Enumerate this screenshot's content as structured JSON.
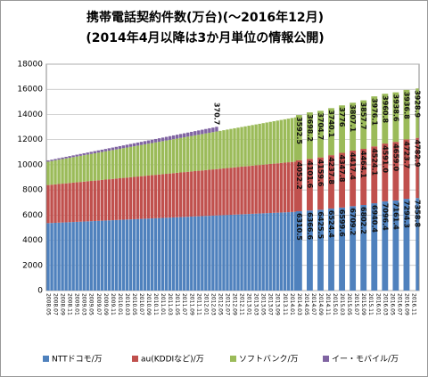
{
  "chart_data": {
    "type": "stacked_bar",
    "title": "携帯電話契約件数(万台)(～2016年12月)",
    "subtitle": "(2014年4月以降は3か月単位の情報公開)",
    "categories": [
      "2008.05",
      null,
      "2008.07",
      null,
      "2008.09",
      null,
      "2008.11",
      null,
      "2009.01",
      null,
      "2009.03",
      null,
      "2009.05",
      null,
      "2009.07",
      null,
      "2009.09",
      null,
      "2009.11",
      null,
      "2010.01",
      null,
      "2010.03",
      null,
      "2010.05",
      null,
      "2010.07",
      null,
      "2010.09",
      null,
      "2010.11",
      null,
      "2011.01",
      null,
      "2011.03",
      null,
      "2011.05",
      null,
      "2011.07",
      null,
      "2011.09",
      null,
      "2011.11",
      null,
      "2012.01",
      null,
      "2012.03",
      null,
      "2012.05",
      null,
      "2012.07",
      null,
      "2012.09",
      null,
      "2012.11",
      null,
      "2013.01",
      null,
      "2013.03",
      null,
      "2013.05",
      null,
      "2013.07",
      null,
      "2013.09",
      null,
      "2013.11",
      null,
      "2014.01",
      null,
      "2014.03",
      null,
      "2014.05",
      null,
      "2014.07",
      null,
      "2014.09",
      null,
      "2014.11",
      null,
      "2015.01",
      null,
      "2015.03",
      null,
      "2015.05",
      null,
      "2015.07",
      null,
      "2015.09",
      null,
      "2015.11",
      null,
      "2016.01",
      null,
      "2016.03",
      null,
      "2016.05",
      null,
      "2016.07",
      null,
      "2016.09",
      null,
      "2016.11",
      null
    ],
    "series": [
      {
        "name": "NTTドコモ/万",
        "color": "#4f81bd",
        "values": [
          5360,
          5373,
          5386,
          5399,
          5412,
          5425,
          5438,
          5451,
          5464,
          5477,
          5490,
          5503,
          5516,
          5529,
          5542,
          5555,
          5568,
          5581,
          5594,
          5607,
          5620,
          5633,
          5646,
          5659,
          5672,
          5685,
          5698,
          5711,
          5724,
          5737,
          5750,
          5763,
          5776,
          5789,
          5802,
          5815,
          5828,
          5841,
          5854,
          5867,
          5880,
          5893,
          5906,
          5919,
          5932,
          5945,
          5958,
          5971,
          5984,
          5997,
          6010,
          6023,
          6036,
          6049,
          6062,
          6075,
          6088,
          6101,
          6114,
          6127,
          6140,
          6153,
          6166,
          6179,
          6192,
          6205,
          6218,
          6231,
          6244,
          6257,
          6310.5,
          null,
          null,
          6366.6,
          null,
          null,
          6425.5,
          null,
          null,
          6524.4,
          null,
          null,
          6599.6,
          null,
          null,
          6709.2,
          null,
          null,
          6802.2,
          null,
          null,
          6940.4,
          null,
          null,
          7096.4,
          null,
          null,
          7161.4,
          null,
          null,
          7294.3,
          null,
          null,
          7358.8
        ],
        "value_labels": [
          null,
          null,
          null,
          null,
          null,
          null,
          null,
          null,
          null,
          null,
          null,
          null,
          null,
          null,
          null,
          null,
          null,
          null,
          null,
          null,
          null,
          null,
          null,
          null,
          null,
          null,
          null,
          null,
          null,
          null,
          null,
          null,
          null,
          null,
          null,
          null,
          null,
          null,
          null,
          null,
          null,
          null,
          null,
          null,
          null,
          null,
          null,
          null,
          null,
          null,
          null,
          null,
          null,
          null,
          null,
          null,
          null,
          null,
          null,
          null,
          null,
          null,
          null,
          null,
          null,
          null,
          null,
          null,
          null,
          null,
          "6310.5",
          null,
          null,
          "6366.6",
          null,
          null,
          "6425.5",
          null,
          null,
          "6524.4",
          null,
          null,
          "6599.6",
          null,
          null,
          "6709.2",
          null,
          null,
          "6802.2",
          null,
          null,
          "6940.4",
          null,
          null,
          "7096.4",
          null,
          null,
          "7161.4",
          null,
          null,
          "7294.3",
          null,
          null,
          "7358.8"
        ]
      },
      {
        "name": "au(KDDIなど)/万",
        "color": "#c0504d",
        "values": [
          3030,
          3044,
          3058,
          3072,
          3086,
          3100,
          3114,
          3128,
          3142,
          3156,
          3170,
          3184,
          3198,
          3212,
          3226,
          3240,
          3254,
          3268,
          3282,
          3296,
          3310,
          3324,
          3338,
          3352,
          3366,
          3380,
          3394,
          3408,
          3422,
          3436,
          3450,
          3464,
          3478,
          3492,
          3506,
          3520,
          3534,
          3548,
          3562,
          3576,
          3590,
          3604,
          3618,
          3632,
          3646,
          3660,
          3674,
          3688,
          3702,
          3716,
          3730,
          3744,
          3758,
          3772,
          3786,
          3800,
          3814,
          3828,
          3842,
          3856,
          3870,
          3884,
          3898,
          3912,
          3926,
          3940,
          3954,
          3968,
          3982,
          3996,
          4052.2,
          null,
          null,
          4101.6,
          null,
          null,
          4159.6,
          null,
          null,
          4237.8,
          null,
          null,
          4347.8,
          null,
          null,
          4417.4,
          null,
          null,
          4464.1,
          null,
          null,
          4524.1,
          null,
          null,
          4591,
          null,
          null,
          4659,
          null,
          null,
          4723.7,
          null,
          null,
          4782.9
        ],
        "value_labels": [
          null,
          null,
          null,
          null,
          null,
          null,
          null,
          null,
          null,
          null,
          null,
          null,
          null,
          null,
          null,
          null,
          null,
          null,
          null,
          null,
          null,
          null,
          null,
          null,
          null,
          null,
          null,
          null,
          null,
          null,
          null,
          null,
          null,
          null,
          null,
          null,
          null,
          null,
          null,
          null,
          null,
          null,
          null,
          null,
          null,
          null,
          null,
          null,
          null,
          null,
          null,
          null,
          null,
          null,
          null,
          null,
          null,
          null,
          null,
          null,
          null,
          null,
          null,
          null,
          null,
          null,
          null,
          null,
          null,
          null,
          "4052.2",
          null,
          null,
          "4101.6",
          null,
          null,
          "4159.6",
          null,
          null,
          "4237.8",
          null,
          null,
          "4347.8",
          null,
          null,
          "4417.4",
          null,
          null,
          "4464.1",
          null,
          null,
          "4524.1",
          null,
          null,
          "4591.0",
          null,
          null,
          "4659.0",
          null,
          null,
          "4723.7",
          null,
          null,
          "4782.9"
        ]
      },
      {
        "name": "ソフトバンク/万",
        "color": "#9bbb59",
        "values": [
          1860,
          1884,
          1908,
          1932,
          1956,
          1980,
          2004,
          2028,
          2052,
          2076,
          2100,
          2124,
          2148,
          2172,
          2196,
          2220,
          2244,
          2268,
          2292,
          2316,
          2340,
          2364,
          2388,
          2412,
          2436,
          2460,
          2484,
          2508,
          2532,
          2556,
          2580,
          2604,
          2628,
          2652,
          2676,
          2700,
          2724,
          2748,
          2772,
          2796,
          2820,
          2844,
          2868,
          2892,
          2916,
          2940,
          2964,
          2988,
          3012,
          3036,
          3060,
          3084,
          3108,
          3132,
          3156,
          3180,
          3204,
          3228,
          3252,
          3276,
          3300,
          3324,
          3348,
          3372,
          3396,
          3420,
          3444,
          3468,
          3492,
          3516,
          3592.5,
          null,
          null,
          3698.2,
          null,
          null,
          3704.7,
          null,
          null,
          3740.1,
          null,
          null,
          3776,
          null,
          null,
          3807.1,
          null,
          null,
          3857.7,
          null,
          null,
          3976.1,
          null,
          null,
          3960.8,
          null,
          null,
          3938.6,
          null,
          null,
          3936.8,
          null,
          null,
          3928.9
        ],
        "value_labels": [
          null,
          null,
          null,
          null,
          null,
          null,
          null,
          null,
          null,
          null,
          null,
          null,
          null,
          null,
          null,
          null,
          null,
          null,
          null,
          null,
          null,
          null,
          null,
          null,
          null,
          null,
          null,
          null,
          null,
          null,
          null,
          null,
          null,
          null,
          null,
          null,
          null,
          null,
          null,
          null,
          null,
          null,
          null,
          null,
          null,
          null,
          null,
          null,
          null,
          null,
          null,
          null,
          null,
          null,
          null,
          null,
          null,
          null,
          null,
          null,
          null,
          null,
          null,
          null,
          null,
          null,
          null,
          null,
          null,
          null,
          "3592.5",
          null,
          null,
          "3698.2",
          null,
          null,
          "3704.7",
          null,
          null,
          "3740.1",
          null,
          null,
          "3776",
          null,
          null,
          "3807.1",
          null,
          null,
          "3857.7",
          null,
          null,
          "3976.1",
          null,
          null,
          "3960.8",
          null,
          null,
          "3938.6",
          null,
          null,
          "3936.8",
          null,
          null,
          "3928.9"
        ]
      },
      {
        "name": "イー・モバイル/万",
        "color": "#8064a2",
        "values": [
          100,
          106,
          111,
          117,
          123,
          129,
          134,
          140,
          146,
          151,
          157,
          163,
          168,
          174,
          180,
          186,
          191,
          197,
          203,
          208,
          214,
          220,
          225,
          231,
          237,
          243,
          248,
          254,
          260,
          265,
          271,
          277,
          282,
          288,
          294,
          300,
          305,
          311,
          317,
          322,
          328,
          334,
          339,
          345,
          351,
          357,
          362,
          370.7,
          null,
          null,
          null,
          null,
          null,
          null,
          null,
          null,
          null,
          null,
          null,
          null,
          null,
          null,
          null,
          null,
          null,
          null,
          null,
          null,
          null,
          null,
          null,
          null,
          null,
          null,
          null,
          null,
          null,
          null,
          null,
          null,
          null,
          null,
          null,
          null,
          null,
          null,
          null,
          null,
          null,
          null,
          null,
          null,
          null,
          null,
          null,
          null,
          null,
          null,
          null,
          null,
          null,
          null,
          null,
          null
        ],
        "value_labels": [
          null,
          null,
          null,
          null,
          null,
          null,
          null,
          null,
          null,
          null,
          null,
          null,
          null,
          null,
          null,
          null,
          null,
          null,
          null,
          null,
          null,
          null,
          null,
          null,
          null,
          null,
          null,
          null,
          null,
          null,
          null,
          null,
          null,
          null,
          null,
          null,
          null,
          null,
          null,
          null,
          null,
          null,
          null,
          null,
          null,
          null,
          null,
          "370.7",
          null,
          null,
          null,
          null,
          null,
          null,
          null,
          null,
          null,
          null,
          null,
          null,
          null,
          null,
          null,
          null,
          null,
          null,
          null,
          null,
          null,
          null,
          null,
          null,
          null,
          null,
          null,
          null,
          null,
          null,
          null,
          null,
          null,
          null,
          null,
          null,
          null,
          null,
          null,
          null,
          null,
          null,
          null,
          null,
          null,
          null,
          null,
          null,
          null,
          null,
          null,
          null,
          null,
          null,
          null,
          null
        ]
      }
    ],
    "ylim": [
      0,
      18000
    ],
    "yticks": [
      0,
      2000,
      4000,
      6000,
      8000,
      10000,
      12000,
      14000,
      16000,
      18000
    ],
    "grid": true,
    "legend": "bottom"
  }
}
